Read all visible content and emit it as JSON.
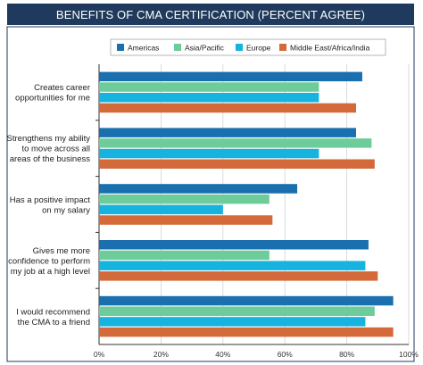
{
  "chart_data": {
    "type": "bar",
    "orientation": "horizontal",
    "title": "BENEFITS OF CMA CERTIFICATION (PERCENT AGREE)",
    "categories": [
      "Creates career opportunities for me",
      "Strengthens my ability to move across all areas of the business",
      "Has a positive impact on my salary",
      "Gives me more confidence to perform my job at a high level",
      "I would recommend the CMA to a friend"
    ],
    "category_lines": [
      [
        "Creates career",
        "opportunities for me"
      ],
      [
        "Strengthens my ability",
        "to move across all",
        "areas of the business"
      ],
      [
        "Has a positive impact",
        "on my salary"
      ],
      [
        "Gives me more",
        "confidence to perform",
        "my job at a high level"
      ],
      [
        "I would recommend",
        "the CMA to a friend"
      ]
    ],
    "series": [
      {
        "name": "Americas",
        "color": "#1a6faf",
        "values": [
          85,
          83,
          64,
          87,
          95
        ]
      },
      {
        "name": "Asia/Pacific",
        "color": "#6dcc9a",
        "values": [
          71,
          88,
          55,
          55,
          89
        ]
      },
      {
        "name": "Europe",
        "color": "#16b3de",
        "values": [
          71,
          71,
          40,
          86,
          86
        ]
      },
      {
        "name": "Middle East/Africa/India",
        "color": "#d4693a",
        "values": [
          83,
          89,
          56,
          90,
          95
        ]
      }
    ],
    "xlim": [
      0,
      100
    ],
    "xticks": [
      0,
      20,
      40,
      60,
      80,
      100
    ],
    "xtick_labels": [
      "0%",
      "20%",
      "40%",
      "60%",
      "80%",
      "100%"
    ],
    "grid": true,
    "legend_position": "top"
  }
}
